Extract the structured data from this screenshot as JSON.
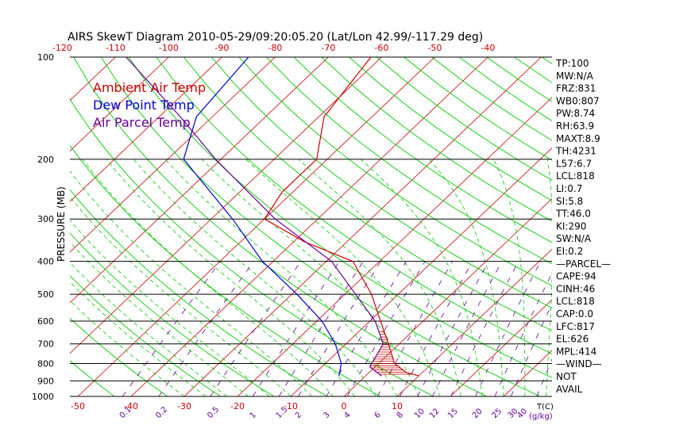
{
  "chart_data": {
    "type": "line",
    "chart_kind": "Skew-T log-P diagram",
    "title": "AIRS SkewT Diagram 2010-05-29/09:20:05.20 (Lat/Lon 42.99/-117.29 deg)",
    "ylabel": "PRESSURE (MB)",
    "x_unit_label": "T(C)",
    "mixing_ratio_unit_label": "(g/kg)",
    "y_scale": "log",
    "ylim": [
      1000,
      100
    ],
    "xlim_bottom": [
      -50,
      10
    ],
    "pressure_ticks": [
      100,
      200,
      300,
      400,
      500,
      600,
      700,
      800,
      900,
      1000
    ],
    "bottom_temperature_ticks": [
      -50,
      -40,
      -30,
      -20,
      -10,
      0,
      10
    ],
    "top_temperature_ticks": [
      -120,
      -110,
      -100,
      -90,
      -80,
      -70,
      -60,
      -50,
      -40
    ],
    "mixing_ratio_labels": [
      "0.1",
      "0.2",
      "0.5",
      "1",
      "1.5",
      "2",
      "3",
      "4",
      "6",
      "8",
      "10",
      "12",
      "15",
      "20",
      "25",
      "30",
      "40"
    ],
    "legend": [
      {
        "label": "Ambient Air Temp",
        "color": "#cc0000"
      },
      {
        "label": "Dew Point Temp",
        "color": "#0000cc"
      },
      {
        "label": "Air Parcel Temp",
        "color": "#660099"
      }
    ],
    "colors": {
      "ambient": "#cc0000",
      "dewpoint": "#0000cc",
      "parcel": "#660099",
      "isotherm": "#cc0000",
      "dry_adiabat": "#00cc00",
      "moist_adiabat": "#00cc00",
      "mixing_ratio": "#660099",
      "isobar": "#000000",
      "stat_text": "#000000"
    },
    "series": [
      {
        "name": "Ambient Air Temp",
        "points": [
          {
            "p": 870,
            "t": 10
          },
          {
            "p": 850,
            "t": 7
          },
          {
            "p": 800,
            "t": 3
          },
          {
            "p": 700,
            "t": -2
          },
          {
            "p": 600,
            "t": -8
          },
          {
            "p": 500,
            "t": -15
          },
          {
            "p": 400,
            "t": -25
          },
          {
            "p": 350,
            "t": -38
          },
          {
            "p": 300,
            "t": -50
          },
          {
            "p": 250,
            "t": -52
          },
          {
            "p": 200,
            "t": -52
          },
          {
            "p": 150,
            "t": -59
          },
          {
            "p": 100,
            "t": -62
          }
        ]
      },
      {
        "name": "Dew Point Temp",
        "points": [
          {
            "p": 870,
            "t": -5
          },
          {
            "p": 800,
            "t": -7
          },
          {
            "p": 700,
            "t": -12
          },
          {
            "p": 600,
            "t": -19
          },
          {
            "p": 500,
            "t": -29
          },
          {
            "p": 400,
            "t": -42
          },
          {
            "p": 300,
            "t": -56
          },
          {
            "p": 200,
            "t": -77
          },
          {
            "p": 150,
            "t": -83
          },
          {
            "p": 100,
            "t": -85
          }
        ]
      },
      {
        "name": "Air Parcel Temp",
        "points": [
          {
            "p": 870,
            "t": 3
          },
          {
            "p": 818,
            "t": -1
          },
          {
            "p": 700,
            "t": -3
          },
          {
            "p": 600,
            "t": -9
          },
          {
            "p": 500,
            "t": -18
          },
          {
            "p": 400,
            "t": -29
          },
          {
            "p": 300,
            "t": -48
          },
          {
            "p": 200,
            "t": -71
          },
          {
            "p": 150,
            "t": -86
          },
          {
            "p": 100,
            "t": -108
          }
        ]
      }
    ],
    "stats": [
      "TP:100",
      "MW:N/A",
      "FRZ:831",
      "WB0:807",
      "PW:8.74",
      "RH:63.9",
      "MAXT:8.9",
      "TH:4231",
      "L57:6.7",
      "LCL:818",
      "LI:0.7",
      "SI:5.8",
      "TT:46.0",
      "KI:290",
      "SW:N/A",
      "EI:0.2",
      "—PARCEL—",
      "CAPE:94",
      "CINH:46",
      "LCL:818",
      "CAP:0.0",
      "LFC:817",
      "EL:626",
      "MPL:414",
      "—WIND—",
      "NOT",
      "AVAIL"
    ]
  }
}
